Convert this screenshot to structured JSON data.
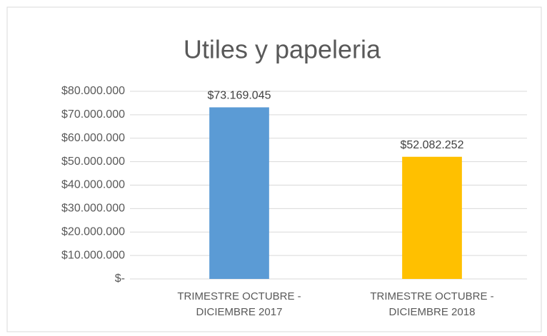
{
  "chart_data": {
    "type": "bar",
    "title": "Utiles y papeleria",
    "categories": [
      "TRIMESTRE OCTUBRE - DICIEMBRE 2017",
      "TRIMESTRE OCTUBRE - DICIEMBRE 2018"
    ],
    "values": [
      73169045,
      52082252
    ],
    "value_labels": [
      "$73.169.045",
      "$52.082.252"
    ],
    "colors": [
      "#5b9bd5",
      "#ffc000"
    ],
    "ylim": [
      0,
      80000000
    ],
    "yticks": [
      {
        "value": 0,
        "label": "$-"
      },
      {
        "value": 10000000,
        "label": "$10.000.000"
      },
      {
        "value": 20000000,
        "label": "$20.000.000"
      },
      {
        "value": 30000000,
        "label": "$30.000.000"
      },
      {
        "value": 40000000,
        "label": "$40.000.000"
      },
      {
        "value": 50000000,
        "label": "$50.000.000"
      },
      {
        "value": 60000000,
        "label": "$60.000.000"
      },
      {
        "value": 70000000,
        "label": "$70.000.000"
      },
      {
        "value": 80000000,
        "label": "$80.000.000"
      }
    ],
    "grid": true
  }
}
